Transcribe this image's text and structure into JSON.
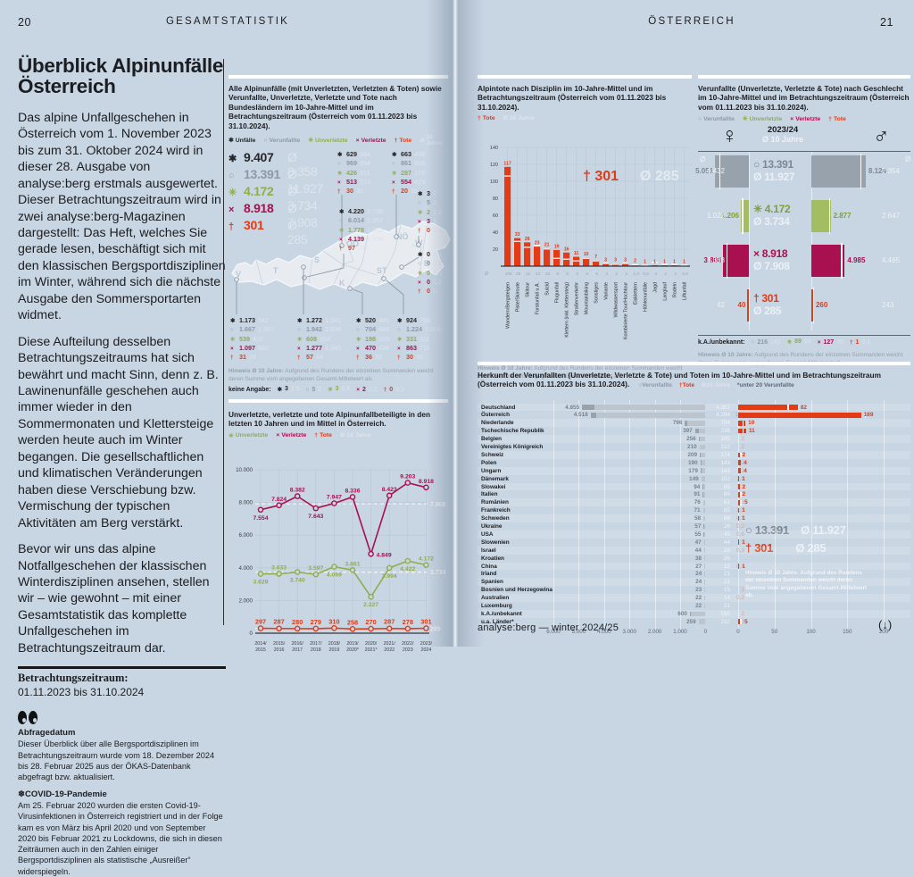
{
  "meta": {
    "left_page_number": "20",
    "left_running_head": "GESAMTSTATISTIK",
    "right_running_head": "ÖSTERREICH",
    "right_page_number": "21",
    "footer": "analyse:berg — winter 2024/25",
    "footer_arrow": "(↓)"
  },
  "colors": {
    "page_bg": "#c8d5e3",
    "dark": "#26282b",
    "gray": "#8d99a6",
    "green": "#8fae4e",
    "green_bar": "#a3bd62",
    "magenta": "#a81050",
    "red": "#e23b16",
    "mean_light": "#dde5ee",
    "bar_gray": "#98a2ad",
    "bar_gray_light": "#bcc4cd"
  },
  "icons": {
    "unfaelle": "✱",
    "verunfallte": "○",
    "unverletzte": "✳",
    "verletzte": "×",
    "tote": "†",
    "mean": "Ø"
  },
  "article": {
    "title": "Überblick Alpinunfälle Österreich",
    "paragraphs": [
      "Das alpine Unfallgeschehen in Österreich vom 1. November 2023 bis zum 31. Oktober 2024 wird in dieser 28. Ausgabe von analyse:berg erstmals ausgewertet. Dieser Betrachtungszeitraum wird in zwei analyse:berg-Magazinen dargestellt: Das Heft, welches Sie gerade lesen, beschäftigt sich mit den klassischen Bergsportdisziplinen im Winter, während sich die nächste Ausgabe den Sommersportarten widmet.",
      "Diese Aufteilung desselben Betrachtungszeitraums hat sich bewährt und macht Sinn, denn z. B. Lawinenunfälle geschehen auch immer wieder in den Sommermonaten und Klettersteige werden heute auch im Winter begangen. Die gesellschaftlichen und klimatischen Veränderungen haben diese Verschiebung bzw. Vermischung der typischen Aktivitäten am Berg verstärkt.",
      "Bevor wir uns das alpine Notfallgeschehen der klassischen Winterdisziplinen ansehen, stellen wir – wie gewohnt – mit einer Gesamtstatistik das komplette Unfallgeschehen im Betrachtungszeitraum dar."
    ],
    "period_label": "Betrachtungszeitraum:",
    "period_value": "01.11.2023 bis 31.10.2024",
    "query_heading": "Abfragedatum",
    "query_text": "Dieser Überblick über alle Bergsportdisziplinen im Betrachtungszeitraum wurde vom 18. Dezember 2024 bis 28. Februar 2025 aus der ÖKAS-Datenbank abgefragt bzw. aktualisiert.",
    "covid_icon": "❄",
    "covid_heading": "COVID-19-Pandemie",
    "covid_text": "Am 25. Februar 2020 wurden die ersten Covid-19-Virusinfektionen in Österreich registriert und in der Folge kam es von März bis April 2020 und von September 2020 bis Februar 2021 zu Lockdowns, die sich in diesen Zeiträumen auch in den Zahlen einiger Bergsportdisziplinen als statistische „Ausreißer“ widerspiegeln."
  },
  "chart_data": [
    {
      "type": "table",
      "name": "alpinunfaelle-bundeslaender",
      "title": "Alle Alpinunfälle (mit Unverletzten, Verletzten & Toten) sowie Verunfallte, Unverletzte, Verletzte und Tote nach Bundesländern im 10-Jahre-Mittel und im Betrachtungszeitraum (Österreich vom 01.11.2023 bis 31.10.2024).",
      "legend": [
        "Unfälle",
        "Verunfallte",
        "Unverletzte",
        "Verletzte",
        "Tote",
        "Ø 10 Jahre"
      ],
      "metrics": [
        "Unfälle",
        "Verunfallte",
        "Unverletzte",
        "Verletzte",
        "Tote"
      ],
      "totals": {
        "values": [
          "9.407",
          "13.391",
          "4.172",
          "8.918",
          "301"
        ],
        "means": [
          "8.358",
          "11.927",
          "3.734",
          "7.908",
          "285"
        ]
      },
      "states": [
        {
          "id": "OÖ",
          "values": [
            "629",
            "969",
            "426",
            "513",
            "30"
          ],
          "means": [
            "584",
            "854",
            "311",
            "513",
            "30"
          ]
        },
        {
          "id": "NÖ",
          "values": [
            "663",
            "861",
            "287",
            "554",
            "20"
          ],
          "means": [
            "498",
            "618",
            "176",
            "423",
            "18"
          ]
        },
        {
          "id": "W",
          "values": [
            "3",
            "5",
            "2",
            "3",
            "0"
          ],
          "means": [
            "2",
            "3",
            "1,2",
            "2",
            "0,1"
          ]
        },
        {
          "id": "B",
          "values": [
            "0",
            "0",
            "0",
            "0",
            "0"
          ],
          "means": [
            "0,1",
            "0,2",
            "0,1",
            "0,1",
            "0"
          ]
        },
        {
          "id": "T",
          "values": [
            "4.220",
            "6.014",
            "1.778",
            "4.139",
            "97"
          ],
          "means": [
            "3.738",
            "5.357",
            "1.653",
            "3.604",
            "101"
          ]
        },
        {
          "id": "V",
          "values": [
            "1.173",
            "1.667",
            "539",
            "1.097",
            "31"
          ],
          "means": [
            "942",
            "1.327",
            "422",
            "882",
            "24"
          ]
        },
        {
          "id": "S",
          "values": [
            "1.272",
            "1.942",
            "608",
            "1.277",
            "57"
          ],
          "means": [
            "1.341",
            "2.038",
            "654",
            "1.340",
            "44"
          ]
        },
        {
          "id": "K",
          "values": [
            "520",
            "704",
            "198",
            "470",
            "36"
          ],
          "means": [
            "485",
            "669",
            "203",
            "434",
            "32"
          ]
        },
        {
          "id": "ST",
          "values": [
            "924",
            "1.224",
            "331",
            "863",
            "30"
          ],
          "means": [
            "768",
            "1.058",
            "311",
            "711",
            "36"
          ]
        }
      ],
      "hinweis_bold": "Hinweis Ø 10 Jahre:",
      "hinweis_text": "Aufgrund des Rundens der einzelnen Summanden weicht deren Summe vom angegebenen Gesamt-Mittelwert ab.",
      "keine_angabe": {
        "label": "keine Angabe:",
        "values": [
          "3",
          "5",
          "3",
          "2",
          "0"
        ],
        "means": [
          "1,5",
          "2",
          "0,6",
          "1,1",
          "0,1"
        ]
      }
    },
    {
      "type": "line",
      "name": "zehn-jahres-verlauf",
      "title": "Unverletzte, verletzte und tote Alpinunfallbeteiligte in den letzten 10 Jahren und im Mittel in Österreich.",
      "legend": [
        "Unverletzte",
        "Verletzte",
        "Tote",
        "Ø 10 Jahre"
      ],
      "categories": [
        [
          "2014/",
          "2015"
        ],
        [
          "2015/",
          "2016"
        ],
        [
          "2016/",
          "2017"
        ],
        [
          "2017/",
          "2018"
        ],
        [
          "2018/",
          "2019"
        ],
        [
          "2019/",
          "2020*"
        ],
        [
          "2020/",
          "2021*"
        ],
        [
          "2021/",
          "2022"
        ],
        [
          "2022/",
          "2023"
        ],
        [
          "2023/",
          "2024"
        ]
      ],
      "yticks": [
        "10.000",
        "8.000",
        "6.000",
        "4.000",
        "2.000",
        "0"
      ],
      "ylim": [
        0,
        10000
      ],
      "series": [
        {
          "name": "Verletzte",
          "labels": [
            "7.554",
            "7.824",
            "8.382",
            "7.643",
            "7.947",
            "8.336",
            "4.849",
            "8.423",
            "9.203",
            "8.918"
          ],
          "mean_label": "7.908"
        },
        {
          "name": "Unverletzte",
          "labels": [
            "3.629",
            "3.633",
            "3.740",
            "3.597",
            "4.069",
            "3.861",
            "2.227",
            "3.994",
            "4.422",
            "4.172"
          ],
          "mean_label": "3.734"
        },
        {
          "name": "Tote",
          "labels": [
            "297",
            "287",
            "280",
            "279",
            "310",
            "258",
            "270",
            "287",
            "278",
            "301"
          ],
          "mean_label": "285"
        }
      ]
    },
    {
      "type": "bar",
      "name": "alpintote-nach-disziplin",
      "title": "Alpintote nach Disziplin im 10-Jahre-Mittel und im Betrachtungszeitraum (Österreich vom 01.11.2023 bis 31.10.2024).",
      "legend": [
        "Tote",
        "Ø 10 Jahre"
      ],
      "overlay_value": "301",
      "overlay_mean": "285",
      "categories": [
        "Wandern/Bergsteigen",
        "Piste/Skiroute",
        "Skitour",
        "Forstunfall u.Ä.",
        "Suizid",
        "Flugunfall",
        "Klettern (inkl. Klettersteig)",
        "Straßenverkehr",
        "Mountainbiking",
        "Sonstiges",
        "Variante",
        "Wildwassersport",
        "Kombinierte Tour/Hochtour",
        "Eisklettern",
        "Höhlenunfälle",
        "Jagd",
        "Langlauf",
        "Rodeln",
        "Liftunfall"
      ],
      "values": [
        117,
        33,
        28,
        23,
        21,
        19,
        16,
        11,
        10,
        7,
        3,
        3,
        3,
        2,
        1,
        1,
        1,
        1,
        1
      ],
      "value_labels": [
        "117",
        "33",
        "28",
        "23",
        "21",
        "19",
        "16",
        "11",
        "10",
        "7",
        "3",
        "3",
        "3",
        "2",
        "1",
        "1",
        "1",
        "1",
        "1"
      ],
      "mean_labels": [
        "106",
        "29",
        "22",
        "24",
        "20",
        "9",
        "8",
        "6",
        "9",
        "6",
        "3",
        "2",
        "3",
        "1,3",
        "0,6",
        "4",
        "2",
        "2",
        "0,8"
      ],
      "yticks": [
        20,
        40,
        60,
        80,
        100,
        120,
        140
      ],
      "ylim": [
        0,
        140
      ],
      "hinweis_bold": "Hinweis Ø 10 Jahre:",
      "hinweis_text": "Aufgrund des Rundens der einzelnen Summanden weicht deren Summe vom angegebenen Gesamt-Mittelwert ab."
    },
    {
      "type": "bar",
      "name": "verunfallte-nach-geschlecht",
      "title": "Verunfallte (Unverletzte, Verletzte & Tote) nach Geschlecht im 10-Jahre-Mittel und im Betrachtungszeitraum (Österreich vom 01.11.2023 bis 31.10.2024).",
      "legend": [
        "Verunfallte",
        "Unverletzte",
        "Verletzte",
        "Tote"
      ],
      "female_symbol": "♀",
      "male_symbol": "♂",
      "center_top": "2023/24",
      "center_bottom": "Ø 10 Jahre",
      "rows": [
        {
          "key": "verunfallte",
          "value": "13.391",
          "mean": "11.927",
          "female": "5.051",
          "female_mean": "4.432",
          "male": "8.124",
          "male_mean": "7.354"
        },
        {
          "key": "unverletzte",
          "value": "4.172",
          "mean": "3.734",
          "female": "1.206",
          "female_mean": "1.022",
          "male": "2.877",
          "male_mean": "2.647"
        },
        {
          "key": "verletzte",
          "value": "8.918",
          "mean": "7.908",
          "female": "3.806",
          "female_mean": "3.368",
          "male": "4.985",
          "male_mean": "4.465"
        },
        {
          "key": "tote",
          "value": "301",
          "mean": "285",
          "female": "40",
          "female_mean": "42",
          "male": "260",
          "male_mean": "243"
        }
      ],
      "ka_label": "k.A./unbekannt:",
      "ka": [
        {
          "value": "216",
          "mean": "141"
        },
        {
          "value": "89",
          "mean": "68"
        },
        {
          "value": "127",
          "mean": "76"
        },
        {
          "value": "1",
          "mean": "0,1"
        }
      ],
      "hinweis_bold": "Hinweis Ø 10 Jahre:",
      "hinweis_text": "Aufgrund des Rundens der einzelnen Summanden weicht deren Summe vom angegebenen Gesamt-Mittelwert ab."
    },
    {
      "type": "bar",
      "name": "herkunft-der-verunfallten",
      "title_l1": "Herkunft der Verunfallten (Unverletzte, Verletzte & Tote) und Toten im 10-Jahre-Mittel und im Betrachtungszeitraum",
      "title_l2": "(Österreich vom 01.11.2023 bis 31.10.2024).",
      "legend": [
        "Verunfallte",
        "Tote",
        "Ø 10 Jahre",
        "*unter 20 Verunfallte"
      ],
      "overlay_value": "13.391",
      "overlay_value_mean": "11.927",
      "overlay_tote": "301",
      "overlay_tote_mean": "285",
      "hinweis_bold": "Hinweis Ø 10 Jahre:",
      "hinweis_text": "Aufgrund des Rundens der einzelnen Summanden weicht deren Summe vom angegebenen Gesamt-Mittelwert ab.",
      "axis_left": [
        "6.000",
        "5.000",
        "4.000",
        "3.000",
        "2.000",
        "1.000",
        "0"
      ],
      "axis_right": [
        "0",
        "50",
        "100",
        "150",
        "200"
      ],
      "rows": [
        {
          "land": "Deutschland",
          "value": "4.855",
          "mean": "4.357",
          "tote": "82",
          "tote_mean": "68"
        },
        {
          "land": "Österreich",
          "value": "4.518",
          "mean": "4.294",
          "tote": "169",
          "tote_mean": "174"
        },
        {
          "land": "Niederlande",
          "value": "796",
          "mean": "704",
          "tote": "10",
          "tote_mean": "6"
        },
        {
          "land": "Tschechische Republik",
          "value": "397",
          "mean": "239",
          "tote": "11",
          "tote_mean": "6"
        },
        {
          "land": "Belgien",
          "value": "256",
          "mean": "205",
          "tote": "",
          "tote_mean": "2"
        },
        {
          "land": "Vereinigtes Königreich",
          "value": "210",
          "mean": "222",
          "tote": "",
          "tote_mean": "2"
        },
        {
          "land": "Schweiz",
          "value": "209",
          "mean": "174",
          "tote": "2",
          "tote_mean": "3"
        },
        {
          "land": "Polen",
          "value": "190",
          "mean": "143",
          "tote": "4",
          "tote_mean": "2"
        },
        {
          "land": "Ungarn",
          "value": "179",
          "mean": "143",
          "tote": "4",
          "tote_mean": "2"
        },
        {
          "land": "Dänemark",
          "value": "149",
          "mean": "152",
          "tote": "1",
          "tote_mean": "1,2"
        },
        {
          "land": "Slowakei",
          "value": "94",
          "mean": "85",
          "tote": "2",
          "tote_mean": "1,3"
        },
        {
          "land": "Italien",
          "value": "91",
          "mean": "85",
          "tote": "2",
          "tote_mean": "3"
        },
        {
          "land": "Rumänien",
          "value": "76",
          "mean": "61",
          "tote": "5",
          "tote_mean": "3"
        },
        {
          "land": "Frankreich",
          "value": "71",
          "mean": "85",
          "tote": "1",
          "tote_mean": "1,1"
        },
        {
          "land": "Schweden",
          "value": "58",
          "mean": "68",
          "tote": "1",
          "tote_mean": "0,8"
        },
        {
          "land": "Ukraine",
          "value": "57",
          "mean": "26",
          "tote": "",
          "tote_mean": "0,2"
        },
        {
          "land": "USA",
          "value": "55",
          "mean": "45",
          "tote": "",
          "tote_mean": "0,6"
        },
        {
          "land": "Slowenien",
          "value": "47",
          "mean": "44",
          "tote": "1",
          "tote_mean": "2"
        },
        {
          "land": "Israel",
          "value": "44",
          "mean": "28",
          "tote": "",
          "tote_mean": "0,3"
        },
        {
          "land": "Kroatien",
          "value": "38",
          "mean": "26",
          "tote": "",
          "tote_mean": ""
        },
        {
          "land": "China",
          "value": "27",
          "mean": "15",
          "tote": "1",
          "tote_mean": "0,4"
        },
        {
          "land": "Irland",
          "value": "24",
          "mean": "21",
          "tote": "",
          "tote_mean": ""
        },
        {
          "land": "Spanien",
          "value": "24",
          "mean": "21",
          "tote": "",
          "tote_mean": ""
        },
        {
          "land": "Bosnien und Herzegowina",
          "value": "23",
          "mean": "15",
          "tote": "",
          "tote_mean": "1"
        },
        {
          "land": "Australien",
          "value": "22",
          "mean": "14",
          "tote": "",
          "tote_mean": "0,2"
        },
        {
          "land": "Luxemburg",
          "value": "22",
          "mean": "21",
          "tote": "",
          "tote_mean": ""
        },
        {
          "land": "k.A./unbekannt",
          "value": "600",
          "mean": "556",
          "tote": "",
          "tote_mean": "2"
        },
        {
          "land": "u.a. Länder*",
          "value": "259",
          "mean": "232",
          "tote": "5",
          "tote_mean": "3"
        }
      ]
    }
  ]
}
